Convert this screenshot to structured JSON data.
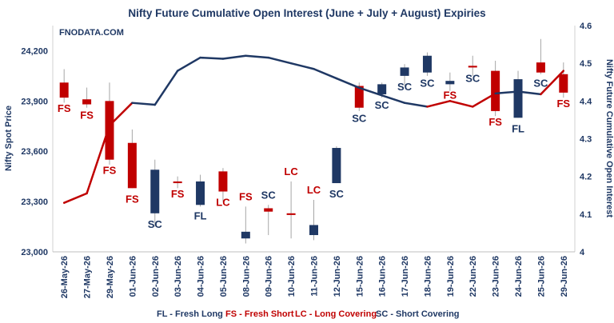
{
  "chart_data": {
    "type": "candlestick+line",
    "title": "Nifty Future Cumulative Open Interest (June + July + August) Expiries",
    "watermark": "FNODATA.COM",
    "ylabel": "Nifty Spot Price",
    "y2label": "Nifty Future Cumulative Open Interest",
    "ylim": [
      23000,
      24350
    ],
    "y2lim": [
      4.0,
      4.6
    ],
    "yticks": [
      "23,000",
      "23,300",
      "23,600",
      "23,900",
      "24,200"
    ],
    "y2ticks": [
      "4",
      "4.1",
      "4.2",
      "4.3",
      "4.4",
      "4.5",
      "4.6"
    ],
    "grid": false,
    "colors": {
      "bull": "#1F3864",
      "bear": "#C00000",
      "text": "#1F3864"
    },
    "categories": [
      "26-May-26",
      "27-May-26",
      "29-May-26",
      "01-Jun-26",
      "02-Jun-26",
      "03-Jun-26",
      "04-Jun-26",
      "05-Jun-26",
      "08-Jun-26",
      "09-Jun-26",
      "10-Jun-26",
      "11-Jun-26",
      "12-Jun-26",
      "15-Jun-26",
      "16-Jun-26",
      "17-Jun-26",
      "18-Jun-26",
      "19-Jun-26",
      "22-Jun-26",
      "23-Jun-26",
      "24-Jun-26",
      "25-Jun-26",
      "29-Jun-26"
    ],
    "ohlc": [
      {
        "o": 24010,
        "h": 24090,
        "l": 23890,
        "c": 23920
      },
      {
        "o": 23910,
        "h": 23980,
        "l": 23860,
        "c": 23880
      },
      {
        "o": 23900,
        "h": 24010,
        "l": 23520,
        "c": 23550
      },
      {
        "o": 23650,
        "h": 23730,
        "l": 23380,
        "c": 23380
      },
      {
        "o": 23230,
        "h": 23550,
        "l": 23150,
        "c": 23490
      },
      {
        "o": 23420,
        "h": 23450,
        "l": 23380,
        "c": 23410
      },
      {
        "o": 23280,
        "h": 23460,
        "l": 23270,
        "c": 23420
      },
      {
        "o": 23480,
        "h": 23500,
        "l": 23300,
        "c": 23360
      },
      {
        "o": 23080,
        "h": 23270,
        "l": 23050,
        "c": 23120
      },
      {
        "o": 23260,
        "h": 23280,
        "l": 23100,
        "c": 23240
      },
      {
        "o": 23230,
        "h": 23420,
        "l": 23080,
        "c": 23220
      },
      {
        "o": 23100,
        "h": 23310,
        "l": 23070,
        "c": 23160
      },
      {
        "o": 23410,
        "h": 23630,
        "l": 23410,
        "c": 23620
      },
      {
        "o": 23990,
        "h": 24010,
        "l": 23840,
        "c": 23860
      },
      {
        "o": 23940,
        "h": 24010,
        "l": 23920,
        "c": 24000
      },
      {
        "o": 24050,
        "h": 24120,
        "l": 23990,
        "c": 24100
      },
      {
        "o": 24070,
        "h": 24190,
        "l": 24050,
        "c": 24170
      },
      {
        "o": 24000,
        "h": 24070,
        "l": 23960,
        "c": 24020
      },
      {
        "o": 24110,
        "h": 24170,
        "l": 24050,
        "c": 24100
      },
      {
        "o": 24080,
        "h": 24140,
        "l": 23810,
        "c": 23840
      },
      {
        "o": 23800,
        "h": 24080,
        "l": 23800,
        "c": 24030
      },
      {
        "o": 24130,
        "h": 24270,
        "l": 24060,
        "c": 24070
      },
      {
        "o": 24060,
        "h": 24130,
        "l": 23920,
        "c": 23950
      }
    ],
    "oi_series": {
      "values": [
        4.13,
        4.155,
        4.335,
        4.395,
        4.39,
        4.48,
        4.515,
        4.512,
        4.52,
        4.515,
        4.5,
        4.485,
        4.46,
        4.435,
        4.415,
        4.395,
        4.385,
        4.4,
        4.385,
        4.42,
        4.425,
        4.418,
        4.48
      ],
      "segment_colors": [
        "#C00000",
        "#C00000",
        "#C00000",
        "#1F3864",
        "#1F3864",
        "#1F3864",
        "#1F3864",
        "#1F3864",
        "#1F3864",
        "#1F3864",
        "#1F3864",
        "#1F3864",
        "#1F3864",
        "#1F3864",
        "#1F3864",
        "#1F3864",
        "#C00000",
        "#C00000",
        "#C00000",
        "#1F3864",
        "#1F3864",
        "#C00000"
      ]
    },
    "annotations": [
      {
        "text": "FS",
        "pos": "below"
      },
      {
        "text": "FS",
        "pos": "below"
      },
      {
        "text": "FS",
        "pos": "below"
      },
      {
        "text": "FS",
        "pos": "below"
      },
      {
        "text": "SC",
        "pos": "below"
      },
      {
        "text": "FS",
        "pos": "below"
      },
      {
        "text": "FL",
        "pos": "below"
      },
      {
        "text": "LC",
        "pos": "below"
      },
      {
        "text": "FS",
        "pos": "above"
      },
      {
        "text": "SC",
        "pos": "above"
      },
      {
        "text": "LC",
        "pos": "above"
      },
      {
        "text": "LC",
        "pos": "above"
      },
      {
        "text": "SC",
        "pos": "below"
      },
      {
        "text": "SC",
        "pos": "below"
      },
      {
        "text": "SC",
        "pos": "below"
      },
      {
        "text": "SC",
        "pos": "below"
      },
      {
        "text": "SC",
        "pos": "below"
      },
      {
        "text": "FS",
        "pos": "below"
      },
      {
        "text": "SC",
        "pos": "below"
      },
      {
        "text": "FS",
        "pos": "below"
      },
      {
        "text": "FL",
        "pos": "below"
      },
      {
        "text": "SC",
        "pos": "below"
      },
      {
        "text": "FS",
        "pos": "below"
      }
    ],
    "legend": [
      {
        "text": "FL - Fresh Long",
        "color": "#1F3864"
      },
      {
        "text": "FS - Fresh Short",
        "color": "#C00000"
      },
      {
        "text": "LC - Long Covering",
        "color": "#C00000"
      },
      {
        "text": "SC - Short Covering",
        "color": "#1F3864"
      }
    ]
  }
}
